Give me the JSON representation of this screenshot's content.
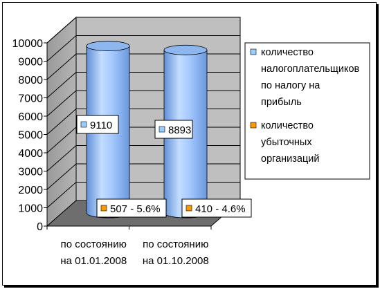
{
  "chart_data": {
    "type": "bar",
    "style": "3d-cylinder",
    "categories": [
      [
        "по состоянию",
        "на 01.01.2008"
      ],
      [
        "по состоянию",
        "на 01.10.2008"
      ]
    ],
    "series": [
      {
        "name": [
          "количество",
          "налогоплательщиков",
          "по налогу на",
          "прибыль"
        ],
        "color": "#99ccff",
        "values": [
          9110,
          8893
        ],
        "labels": [
          "9110",
          "8893"
        ]
      },
      {
        "name": [
          "количество",
          "убыточных",
          "организаций"
        ],
        "color": "#ff9900",
        "values": [
          507,
          410
        ],
        "labels": [
          "507 -  5.6%",
          "410  - 4.6%"
        ]
      }
    ],
    "yticks": [
      "0",
      "1000",
      "2000",
      "3000",
      "4000",
      "5000",
      "6000",
      "7000",
      "8000",
      "9000",
      "10000"
    ],
    "ylim": [
      0,
      10000
    ],
    "grid": true,
    "legend_position": "right"
  }
}
